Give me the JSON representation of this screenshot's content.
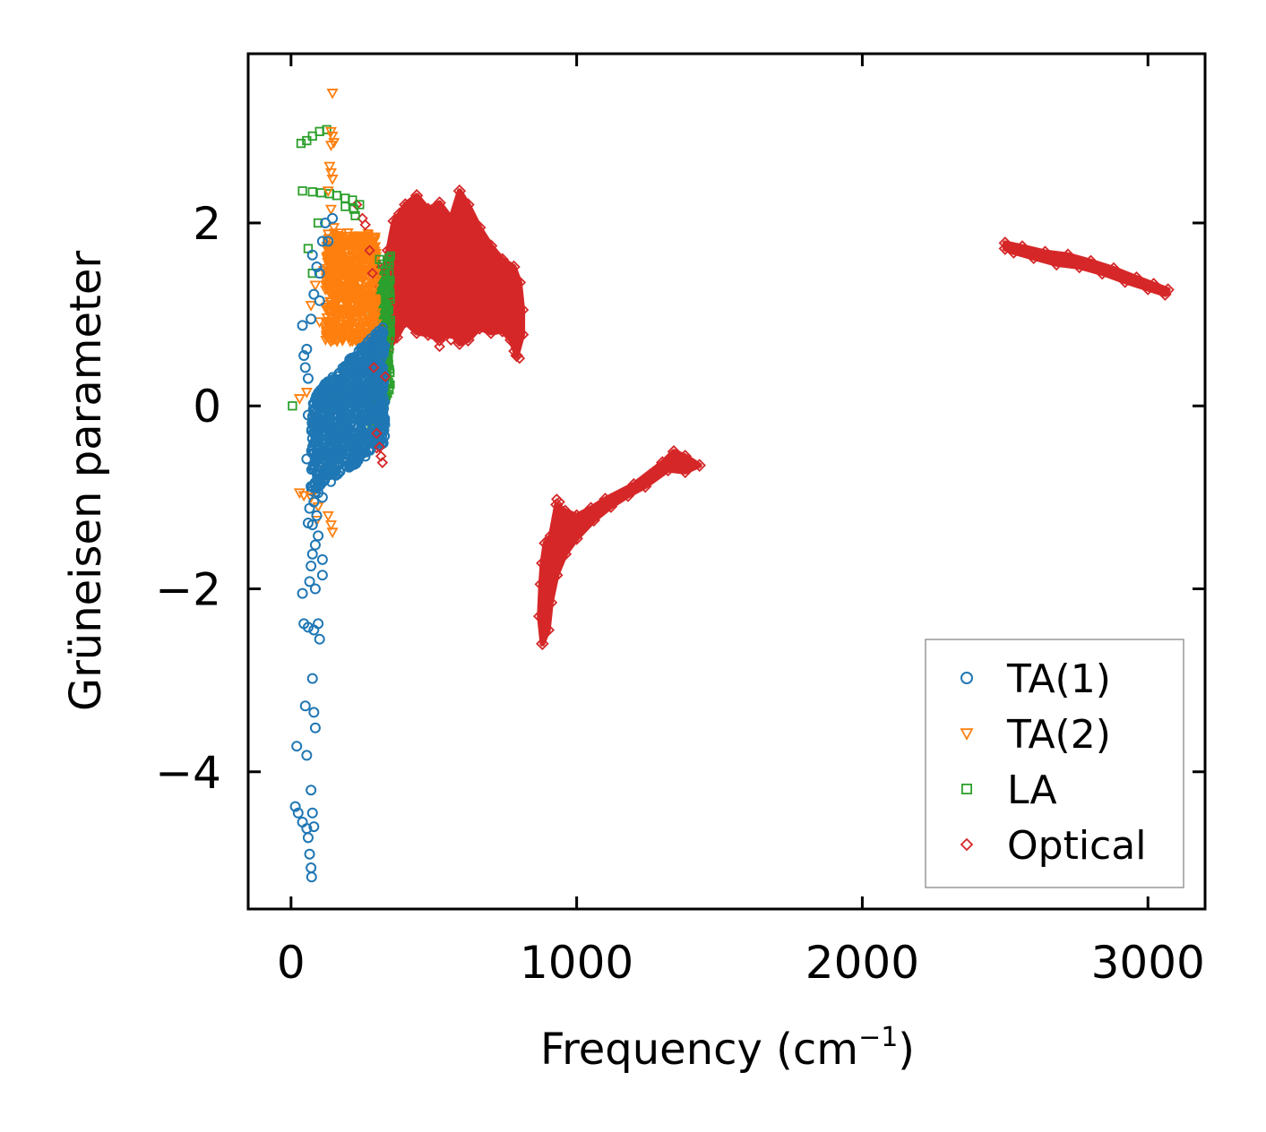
{
  "chart_data": {
    "type": "scatter",
    "title": "",
    "xlabel": "Frequency (cm",
    "xlabel_superscript": "−1",
    "xlabel_suffix": ")",
    "ylabel": "Grüneisen parameter",
    "xlim": [
      -150,
      3200
    ],
    "ylim": [
      -5.5,
      3.85
    ],
    "xticks": [
      0,
      1000,
      2000,
      3000
    ],
    "xtick_labels": [
      "0",
      "1000",
      "2000",
      "3000"
    ],
    "yticks": [
      -4,
      -2,
      0,
      2
    ],
    "ytick_labels": [
      "−4",
      "−2",
      "0",
      "2"
    ],
    "grid": false,
    "legend_position": "lower-right",
    "series": [
      {
        "name": "TA(1)",
        "label": "TA(1)",
        "marker": "circle",
        "color": "#1f77b4",
        "points": [
          [
            15,
            -4.38
          ],
          [
            25,
            -4.45
          ],
          [
            40,
            -4.55
          ],
          [
            55,
            -4.62
          ],
          [
            65,
            -4.9
          ],
          [
            70,
            -5.05
          ],
          [
            72,
            -5.15
          ],
          [
            60,
            -4.72
          ],
          [
            70,
            -4.2
          ],
          [
            75,
            -4.45
          ],
          [
            80,
            -4.6
          ],
          [
            20,
            -3.72
          ],
          [
            55,
            -3.82
          ],
          [
            50,
            -3.28
          ],
          [
            80,
            -3.35
          ],
          [
            85,
            -3.52
          ],
          [
            75,
            -2.98
          ],
          [
            45,
            -2.38
          ],
          [
            60,
            -2.42
          ],
          [
            80,
            -2.45
          ],
          [
            95,
            -2.38
          ],
          [
            100,
            -2.55
          ],
          [
            40,
            -2.05
          ],
          [
            65,
            -1.92
          ],
          [
            85,
            -2.0
          ],
          [
            70,
            -1.75
          ],
          [
            75,
            -1.62
          ],
          [
            110,
            -1.68
          ],
          [
            110,
            -1.85
          ],
          [
            85,
            -1.52
          ],
          [
            95,
            -1.42
          ],
          [
            60,
            -1.28
          ],
          [
            75,
            -1.3
          ],
          [
            90,
            -1.2
          ],
          [
            65,
            -1.12
          ],
          [
            80,
            -1.05
          ],
          [
            70,
            -0.88
          ],
          [
            95,
            -0.95
          ],
          [
            110,
            -1.0
          ],
          [
            55,
            -0.58
          ],
          [
            60,
            -0.1
          ],
          [
            50,
            0.42
          ],
          [
            40,
            0.88
          ],
          [
            55,
            0.62
          ],
          [
            45,
            0.55
          ],
          [
            60,
            0.3
          ],
          [
            70,
            0.95
          ],
          [
            80,
            1.22
          ],
          [
            90,
            1.52
          ],
          [
            100,
            1.45
          ],
          [
            75,
            1.65
          ],
          [
            110,
            1.8
          ],
          [
            120,
            2.0
          ],
          [
            145,
            2.05
          ],
          [
            130,
            1.8
          ],
          [
            100,
            1.15
          ]
        ],
        "dense_region": {
          "note": "dense band of TA(1) points",
          "x_range": [
            70,
            330
          ],
          "y_range": [
            -1.0,
            0.9
          ]
        }
      },
      {
        "name": "TA(2)",
        "label": "TA(2)",
        "marker": "triangle-down",
        "color": "#ff7f0e",
        "points": [
          [
            145,
            3.42
          ],
          [
            140,
            3.0
          ],
          [
            145,
            2.95
          ],
          [
            150,
            2.88
          ],
          [
            140,
            2.85
          ],
          [
            135,
            2.62
          ],
          [
            140,
            2.55
          ],
          [
            145,
            2.48
          ],
          [
            130,
            2.35
          ],
          [
            140,
            2.15
          ],
          [
            150,
            1.95
          ],
          [
            30,
            0.08
          ],
          [
            55,
            0.15
          ],
          [
            30,
            -0.95
          ],
          [
            45,
            -0.98
          ],
          [
            70,
            -1.0
          ],
          [
            95,
            -1.1
          ],
          [
            130,
            -1.2
          ],
          [
            140,
            -1.3
          ],
          [
            145,
            -1.38
          ],
          [
            90,
            -1.25
          ],
          [
            100,
            0.92
          ],
          [
            70,
            1.1
          ],
          [
            85,
            1.32
          ],
          [
            115,
            1.48
          ],
          [
            125,
            1.62
          ]
        ],
        "dense_region": {
          "note": "dense band of TA(2) points",
          "x_range": [
            120,
            300
          ],
          "y_range": [
            0.7,
            1.9
          ]
        }
      },
      {
        "name": "LA",
        "label": "LA",
        "marker": "square",
        "color": "#2ca02c",
        "points": [
          [
            35,
            2.87
          ],
          [
            55,
            2.9
          ],
          [
            75,
            2.95
          ],
          [
            100,
            3.0
          ],
          [
            125,
            3.02
          ],
          [
            40,
            2.35
          ],
          [
            75,
            2.34
          ],
          [
            105,
            2.33
          ],
          [
            135,
            2.32
          ],
          [
            160,
            2.3
          ],
          [
            190,
            2.27
          ],
          [
            215,
            2.25
          ],
          [
            240,
            2.2
          ],
          [
            95,
            2.0
          ],
          [
            60,
            1.72
          ],
          [
            75,
            1.45
          ],
          [
            190,
            2.18
          ],
          [
            220,
            2.15
          ],
          [
            225,
            2.08
          ],
          [
            310,
            1.6
          ],
          [
            320,
            1.55
          ],
          [
            5,
            0.0
          ]
        ],
        "dense_region": {
          "note": "dense band of LA points",
          "x_range": [
            280,
            350
          ],
          "y_range": [
            -0.4,
            1.7
          ]
        }
      },
      {
        "name": "Optical",
        "label": "Optical",
        "marker": "diamond",
        "color": "#d62728",
        "points": [
          [
            230,
            2.2
          ],
          [
            250,
            2.05
          ],
          [
            260,
            1.98
          ],
          [
            275,
            1.7
          ],
          [
            285,
            1.45
          ],
          [
            290,
            0.42
          ],
          [
            300,
            -0.3
          ],
          [
            310,
            -0.45
          ],
          [
            315,
            -0.55
          ],
          [
            320,
            -0.62
          ],
          [
            330,
            0.32
          ],
          [
            520,
            0.65
          ],
          [
            560,
            0.72
          ],
          [
            600,
            0.9
          ],
          [
            780,
            0.6
          ],
          [
            790,
            0.55
          ],
          [
            800,
            0.52
          ],
          [
            930,
            -1.02
          ],
          [
            940,
            -1.05
          ]
        ],
        "bands": [
          {
            "description": "low-frequency optical cluster",
            "outline": [
              [
                300,
                1.55
              ],
              [
                320,
                1.4
              ],
              [
                340,
                1.7
              ],
              [
                360,
                2.02
              ],
              [
                380,
                2.1
              ],
              [
                400,
                2.2
              ],
              [
                440,
                2.3
              ],
              [
                480,
                2.15
              ],
              [
                520,
                2.22
              ],
              [
                560,
                2.05
              ],
              [
                590,
                2.35
              ],
              [
                620,
                2.2
              ],
              [
                660,
                1.95
              ],
              [
                700,
                1.75
              ],
              [
                740,
                1.6
              ],
              [
                780,
                1.52
              ],
              [
                800,
                1.35
              ],
              [
                810,
                1.05
              ],
              [
                810,
                0.78
              ],
              [
                790,
                0.55
              ],
              [
                770,
                0.72
              ],
              [
                740,
                0.82
              ],
              [
                700,
                0.8
              ],
              [
                660,
                0.85
              ],
              [
                620,
                0.72
              ],
              [
                590,
                0.68
              ],
              [
                560,
                0.8
              ],
              [
                520,
                0.72
              ],
              [
                480,
                0.78
              ],
              [
                440,
                0.8
              ],
              [
                400,
                0.92
              ],
              [
                370,
                0.75
              ],
              [
                340,
                0.62
              ],
              [
                320,
                0.2
              ],
              [
                310,
                -0.2
              ],
              [
                300,
                -0.45
              ],
              [
                300,
                0.05
              ],
              [
                300,
                0.6
              ]
            ]
          },
          {
            "description": "mid-frequency optical branch",
            "outline": [
              [
                880,
                -1.72
              ],
              [
                890,
                -1.5
              ],
              [
                910,
                -1.42
              ],
              [
                930,
                -1.08
              ],
              [
                960,
                -1.15
              ],
              [
                1000,
                -1.2
              ],
              [
                1050,
                -1.12
              ],
              [
                1100,
                -1.02
              ],
              [
                1200,
                -0.86
              ],
              [
                1300,
                -0.62
              ],
              [
                1340,
                -0.5
              ],
              [
                1380,
                -0.55
              ],
              [
                1430,
                -0.65
              ],
              [
                1380,
                -0.72
              ],
              [
                1320,
                -0.7
              ],
              [
                1240,
                -0.88
              ],
              [
                1180,
                -0.98
              ],
              [
                1120,
                -1.1
              ],
              [
                1060,
                -1.25
              ],
              [
                1000,
                -1.45
              ],
              [
                960,
                -1.62
              ],
              [
                930,
                -1.85
              ],
              [
                910,
                -2.15
              ],
              [
                900,
                -2.45
              ],
              [
                880,
                -2.6
              ],
              [
                870,
                -2.3
              ],
              [
                875,
                -1.95
              ]
            ]
          },
          {
            "description": "high-frequency optical branch",
            "outline": [
              [
                2500,
                1.78
              ],
              [
                2560,
                1.74
              ],
              [
                2640,
                1.68
              ],
              [
                2720,
                1.65
              ],
              [
                2800,
                1.58
              ],
              [
                2880,
                1.5
              ],
              [
                2960,
                1.4
              ],
              [
                3020,
                1.33
              ],
              [
                3070,
                1.27
              ],
              [
                3060,
                1.22
              ],
              [
                3000,
                1.28
              ],
              [
                2920,
                1.36
              ],
              [
                2840,
                1.45
              ],
              [
                2760,
                1.52
              ],
              [
                2680,
                1.55
              ],
              [
                2600,
                1.62
              ],
              [
                2530,
                1.68
              ],
              [
                2500,
                1.72
              ]
            ]
          }
        ]
      }
    ]
  }
}
